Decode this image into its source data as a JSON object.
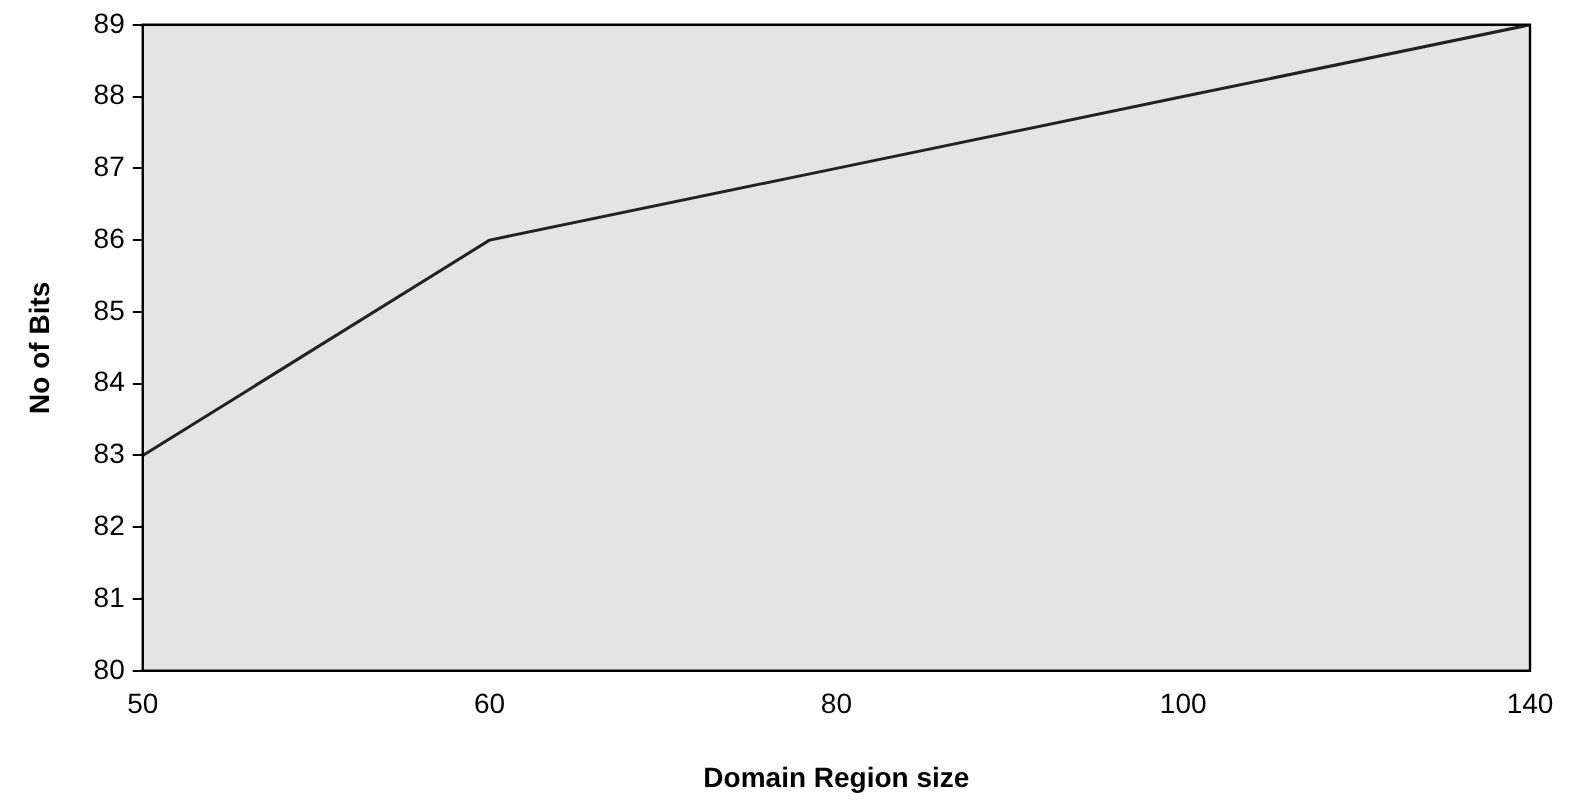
{
  "chart_data": {
    "type": "line",
    "xlabel": "Domain Region size",
    "ylabel": "No of Bits",
    "categories": [
      "50",
      "60",
      "80",
      "100",
      "140"
    ],
    "series": [
      {
        "color": "#222222",
        "values": [
          83,
          86,
          87,
          88,
          89
        ]
      }
    ],
    "ylim": [
      80,
      89
    ],
    "yticks": [
      80,
      81,
      82,
      83,
      84,
      85,
      86,
      87,
      88,
      89
    ],
    "grid": false,
    "legend": false,
    "marker": "none",
    "line_style": "solid"
  }
}
